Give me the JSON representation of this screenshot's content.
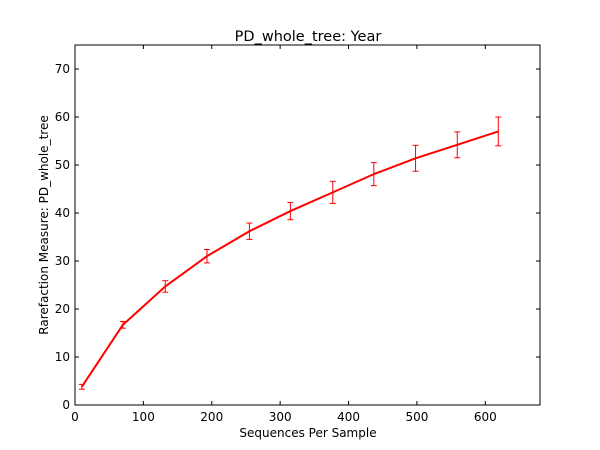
{
  "chart_data": {
    "type": "line",
    "title": "PD_whole_tree: Year",
    "xlabel": "Sequences Per Sample",
    "ylabel": "Rarefaction Measure: PD_whole_tree",
    "xlim": [
      0,
      680
    ],
    "ylim": [
      0,
      75
    ],
    "xticks": [
      0,
      100,
      200,
      300,
      400,
      500,
      600
    ],
    "yticks": [
      0,
      10,
      20,
      30,
      40,
      50,
      60,
      70
    ],
    "grid": false,
    "series": [
      {
        "color": "#ff0000",
        "points": [
          {
            "x": 10,
            "y": 3.8,
            "err": 0.5
          },
          {
            "x": 70,
            "y": 16.7,
            "err": 0.7
          },
          {
            "x": 132,
            "y": 24.7,
            "err": 1.2
          },
          {
            "x": 193,
            "y": 31.0,
            "err": 1.4
          },
          {
            "x": 255,
            "y": 36.2,
            "err": 1.7
          },
          {
            "x": 315,
            "y": 40.4,
            "err": 1.8
          },
          {
            "x": 377,
            "y": 44.3,
            "err": 2.3
          },
          {
            "x": 437,
            "y": 48.1,
            "err": 2.4
          },
          {
            "x": 498,
            "y": 51.4,
            "err": 2.7
          },
          {
            "x": 559,
            "y": 54.2,
            "err": 2.7
          },
          {
            "x": 619,
            "y": 57.0,
            "err": 3.0
          }
        ]
      }
    ]
  }
}
